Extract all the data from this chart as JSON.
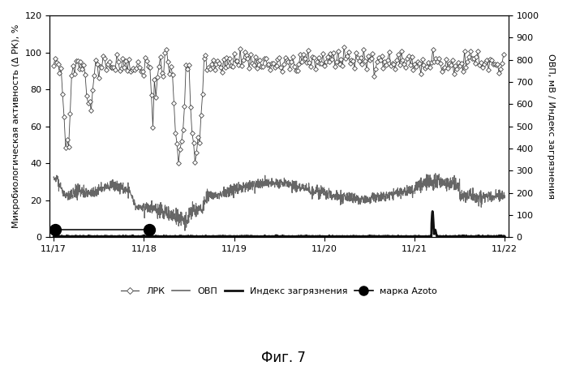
{
  "title": "Фиг. 7",
  "ylabel_left": "Микробиологическая активность (Δ РК), %",
  "ylabel_right": "ОВП, мВ / Индекс загрязнения",
  "ylim_left": [
    0,
    120
  ],
  "ylim_right": [
    0,
    1000
  ],
  "yticks_left": [
    0,
    20,
    40,
    60,
    80,
    100,
    120
  ],
  "yticks_right": [
    0,
    100,
    200,
    300,
    400,
    500,
    600,
    700,
    800,
    900,
    1000
  ],
  "xtick_labels": [
    "11/17",
    "11/18",
    "11/19",
    "11/20",
    "11/21",
    "11/22"
  ],
  "xtick_positions": [
    0,
    24,
    48,
    72,
    96,
    120
  ],
  "xlim": [
    -1,
    121
  ],
  "background_color": "#ffffff",
  "line_color_lrk": "#444444",
  "line_color_ovp": "#666666",
  "line_color_index": "#111111",
  "azoto_color": "#111111",
  "legend_fontsize": 8,
  "axis_fontsize": 8,
  "title_fontsize": 12,
  "lrk_marker_step": 4,
  "lrk_markersize": 3,
  "lrk_linewidth": 0.6,
  "ovp_linewidth": 0.8,
  "index_linewidth": 2.0
}
